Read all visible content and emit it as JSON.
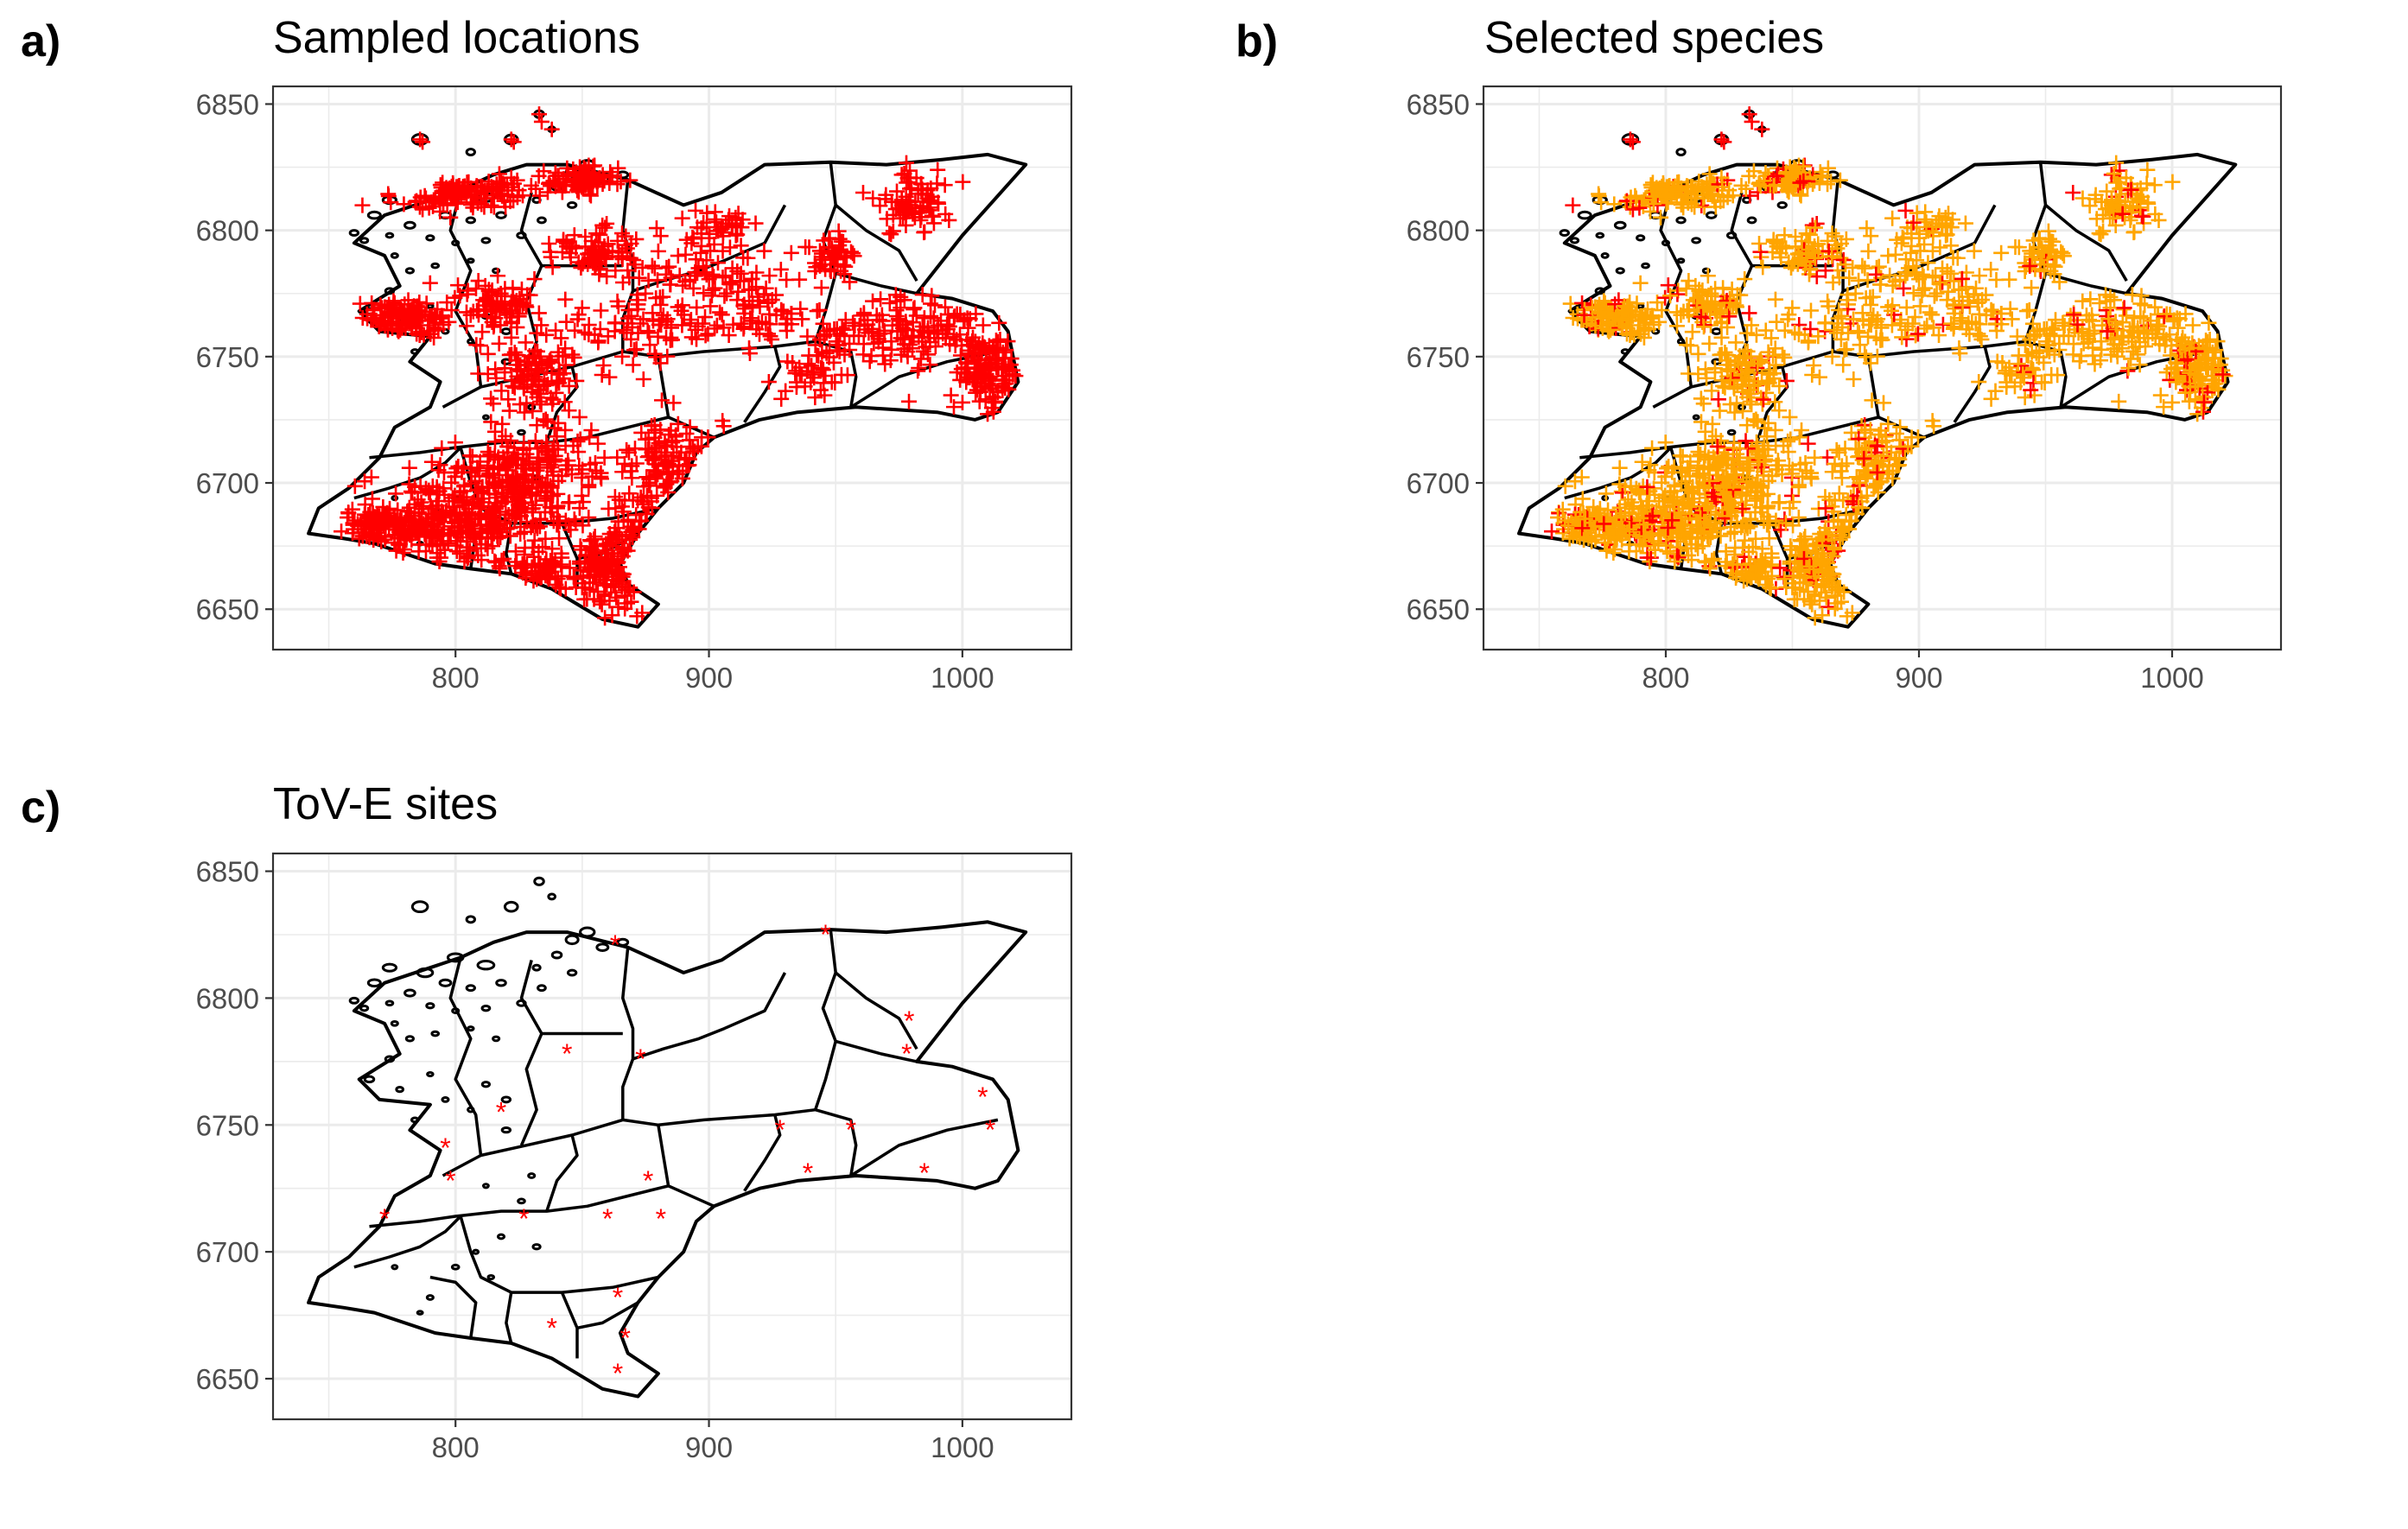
{
  "colors": {
    "sampled": "#ff0000",
    "selected": "#ffa500",
    "boundary": "#000000",
    "grid": "#ebebeb",
    "axis_text": "#4d4d4d"
  },
  "panels": [
    {
      "letter": "a)",
      "title": "Sampled locations",
      "marker": "+",
      "x_ticks": [
        "800",
        "900",
        "1000"
      ],
      "y_ticks": [
        "6850",
        "6800",
        "6750",
        "6700",
        "6650"
      ],
      "xlim": [
        728,
        1043
      ],
      "ylim": [
        6634,
        6857
      ]
    },
    {
      "letter": "b)",
      "title": "Selected species",
      "marker": "+",
      "x_ticks": [
        "800",
        "900",
        "1000"
      ],
      "y_ticks": [
        "6850",
        "6800",
        "6750",
        "6700",
        "6650"
      ],
      "xlim": [
        728,
        1043
      ],
      "ylim": [
        6634,
        6857
      ]
    },
    {
      "letter": "c)",
      "title": "ToV-E sites",
      "marker": "*",
      "x_ticks": [
        "800",
        "900",
        "1000"
      ],
      "y_ticks": [
        "6850",
        "6800",
        "6750",
        "6700",
        "6650"
      ],
      "xlim": [
        728,
        1043
      ],
      "ylim": [
        6634,
        6857
      ]
    }
  ],
  "tove_sites": [
    [
      863,
      6822
    ],
    [
      946,
      6826
    ],
    [
      979,
      6792
    ],
    [
      978,
      6779
    ],
    [
      844,
      6779
    ],
    [
      873,
      6777
    ],
    [
      1008,
      6762
    ],
    [
      1011,
      6749
    ],
    [
      928,
      6749
    ],
    [
      956,
      6749
    ],
    [
      818,
      6756
    ],
    [
      796,
      6742
    ],
    [
      798,
      6729
    ],
    [
      939,
      6732
    ],
    [
      985,
      6732
    ],
    [
      876,
      6729
    ],
    [
      772,
      6714
    ],
    [
      827,
      6714
    ],
    [
      860,
      6714
    ],
    [
      881,
      6714
    ],
    [
      864,
      6683
    ],
    [
      838,
      6671
    ],
    [
      867,
      6667
    ],
    [
      864,
      6653
    ]
  ]
}
